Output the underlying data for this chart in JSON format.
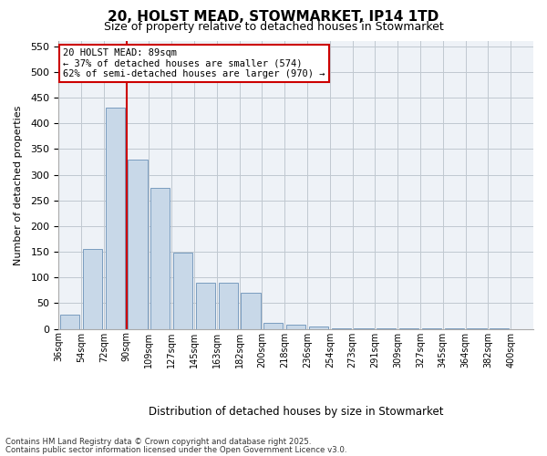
{
  "title_line1": "20, HOLST MEAD, STOWMARKET, IP14 1TD",
  "title_line2": "Size of property relative to detached houses in Stowmarket",
  "xlabel": "Distribution of detached houses by size in Stowmarket",
  "ylabel": "Number of detached properties",
  "bin_labels": [
    "36sqm",
    "54sqm",
    "72sqm",
    "90sqm",
    "109sqm",
    "127sqm",
    "145sqm",
    "163sqm",
    "182sqm",
    "200sqm",
    "218sqm",
    "236sqm",
    "254sqm",
    "273sqm",
    "291sqm",
    "309sqm",
    "327sqm",
    "345sqm",
    "364sqm",
    "382sqm",
    "400sqm"
  ],
  "bar_values": [
    28,
    155,
    430,
    330,
    275,
    148,
    90,
    90,
    70,
    12,
    8,
    5,
    2,
    2,
    2,
    1,
    1,
    1,
    1,
    1,
    0
  ],
  "bar_color": "#c8d8e8",
  "bar_edge_color": "#7a9cbf",
  "grid_color": "#c0c8d0",
  "background_color": "#eef2f7",
  "vline_color": "#cc0000",
  "vline_index": 3.0,
  "annotation_text": "20 HOLST MEAD: 89sqm\n← 37% of detached houses are smaller (574)\n62% of semi-detached houses are larger (970) →",
  "annotation_box_color": "#cc0000",
  "ylim": [
    0,
    560
  ],
  "yticks": [
    0,
    50,
    100,
    150,
    200,
    250,
    300,
    350,
    400,
    450,
    500,
    550
  ],
  "footer_line1": "Contains HM Land Registry data © Crown copyright and database right 2025.",
  "footer_line2": "Contains public sector information licensed under the Open Government Licence v3.0."
}
